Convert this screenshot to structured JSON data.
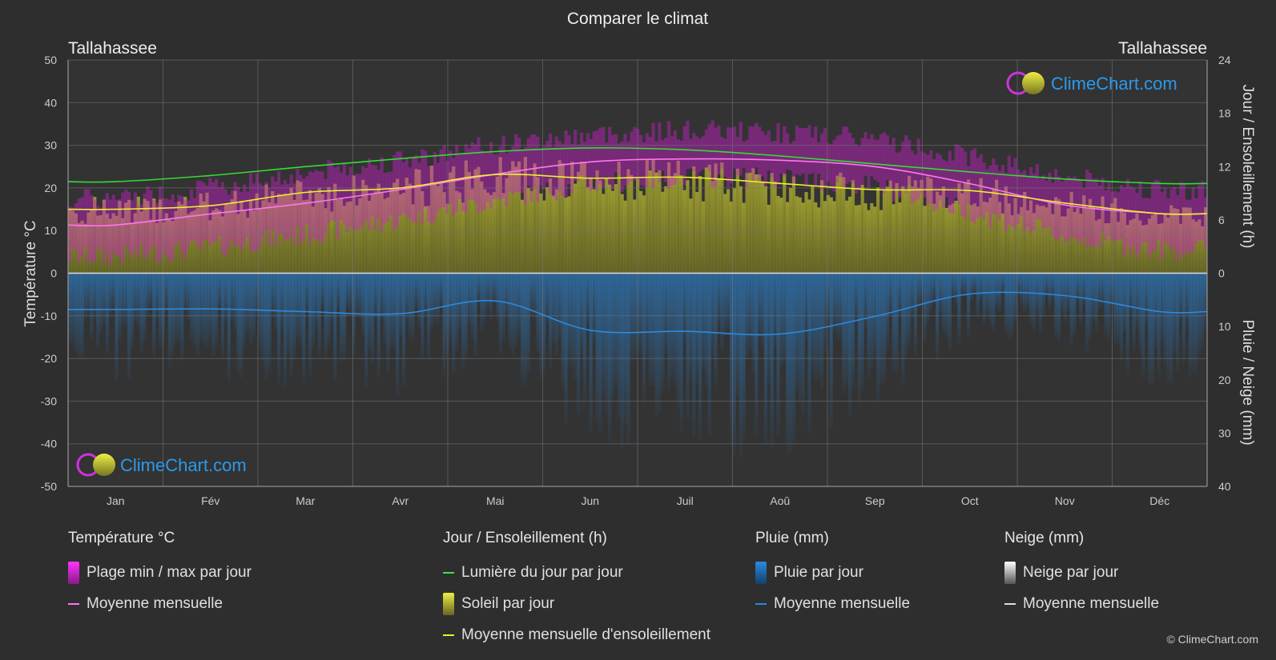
{
  "title": "Comparer le climat",
  "location_left": "Tallahassee",
  "location_right": "Tallahassee",
  "watermark": "ClimeChart.com",
  "copyright": "© ClimeChart.com",
  "colors": {
    "background": "#2e2e2e",
    "temp_range": "#d020d0",
    "temp_mean": "#ff77ee",
    "daylight": "#33dd33",
    "sunshine_fill": "#aaaa22",
    "sunshine_mean": "#eeee33",
    "rain": "#1a6fb8",
    "rain_mean": "#2a8ae0",
    "snow": "#dddddd"
  },
  "legend": {
    "temperature": {
      "title": "Température °C",
      "items": [
        {
          "label": "Plage min / max par jour",
          "swatch": "rect",
          "color": "#d020d0"
        },
        {
          "label": "Moyenne mensuelle",
          "swatch": "line",
          "color": "#ff77ee"
        }
      ]
    },
    "sun": {
      "title": "Jour / Ensoleillement (h)",
      "items": [
        {
          "label": "Lumière du jour par jour",
          "swatch": "line",
          "color": "#44dd44"
        },
        {
          "label": "Soleil par jour",
          "swatch": "rect",
          "color": "#cccc33"
        },
        {
          "label": "Moyenne mensuelle d'ensoleillement",
          "swatch": "line",
          "color": "#eeee33"
        }
      ]
    },
    "rain": {
      "title": "Pluie (mm)",
      "items": [
        {
          "label": "Pluie par jour",
          "swatch": "rect",
          "color": "#2a8ae0"
        },
        {
          "label": "Moyenne mensuelle",
          "swatch": "line",
          "color": "#2a8ae0"
        }
      ]
    },
    "snow": {
      "title": "Neige (mm)",
      "items": [
        {
          "label": "Neige par jour",
          "swatch": "rect",
          "color": "#e0e0e0"
        },
        {
          "label": "Moyenne mensuelle",
          "swatch": "line",
          "color": "#e0e0e0"
        }
      ]
    }
  },
  "chart_data": {
    "type": "line",
    "categories": [
      "Jan",
      "Fév",
      "Mar",
      "Avr",
      "Mai",
      "Jun",
      "Juil",
      "Aoû",
      "Sep",
      "Oct",
      "Nov",
      "Déc"
    ],
    "y_left": {
      "label": "Température °C",
      "range": [
        -50,
        50
      ],
      "ticks": [
        50,
        40,
        30,
        20,
        10,
        0,
        -10,
        -20,
        -30,
        -40,
        -50
      ]
    },
    "y_right_top": {
      "label": "Jour / Ensoleillement (h)",
      "range": [
        0,
        24
      ],
      "ticks": [
        24,
        18,
        12,
        6,
        0
      ]
    },
    "y_right_bottom": {
      "label": "Pluie / Neige (mm)",
      "range": [
        0,
        40
      ],
      "ticks": [
        0,
        10,
        20,
        30,
        40
      ]
    },
    "series": [
      {
        "name": "Moyenne mensuelle",
        "axis": "temperature",
        "values": [
          11.3,
          13.9,
          16.4,
          19.6,
          23.2,
          26.1,
          26.8,
          26.5,
          25.0,
          21.0,
          16.0,
          14.0
        ]
      },
      {
        "name": "Plage min / max par jour (max)",
        "axis": "temperature",
        "values": [
          17.5,
          20.0,
          23.5,
          26.5,
          30.0,
          32.5,
          33.5,
          33.0,
          31.5,
          27.5,
          22.5,
          19.5
        ]
      },
      {
        "name": "Plage min / max par jour (min)",
        "axis": "temperature",
        "values": [
          4.0,
          6.0,
          9.0,
          12.5,
          17.0,
          21.0,
          22.5,
          22.5,
          20.5,
          14.5,
          8.5,
          5.5
        ]
      },
      {
        "name": "Lumière du jour par jour",
        "axis": "hours",
        "values": [
          10.3,
          11.0,
          12.0,
          12.9,
          13.7,
          14.1,
          13.9,
          13.2,
          12.3,
          11.4,
          10.6,
          10.1
        ]
      },
      {
        "name": "Moyenne mensuelle d'ensoleillement",
        "axis": "hours",
        "values": [
          7.2,
          7.6,
          9.1,
          9.6,
          11.1,
          10.7,
          10.8,
          10.1,
          9.4,
          9.3,
          7.9,
          6.7
        ]
      },
      {
        "name": "Moyenne mensuelle",
        "axis": "precipitation",
        "values": [
          6.8,
          6.7,
          7.2,
          7.6,
          5.2,
          10.7,
          10.9,
          11.4,
          8.1,
          3.9,
          4.2,
          7.2
        ]
      }
    ],
    "grid": true,
    "legend_position": "bottom"
  }
}
